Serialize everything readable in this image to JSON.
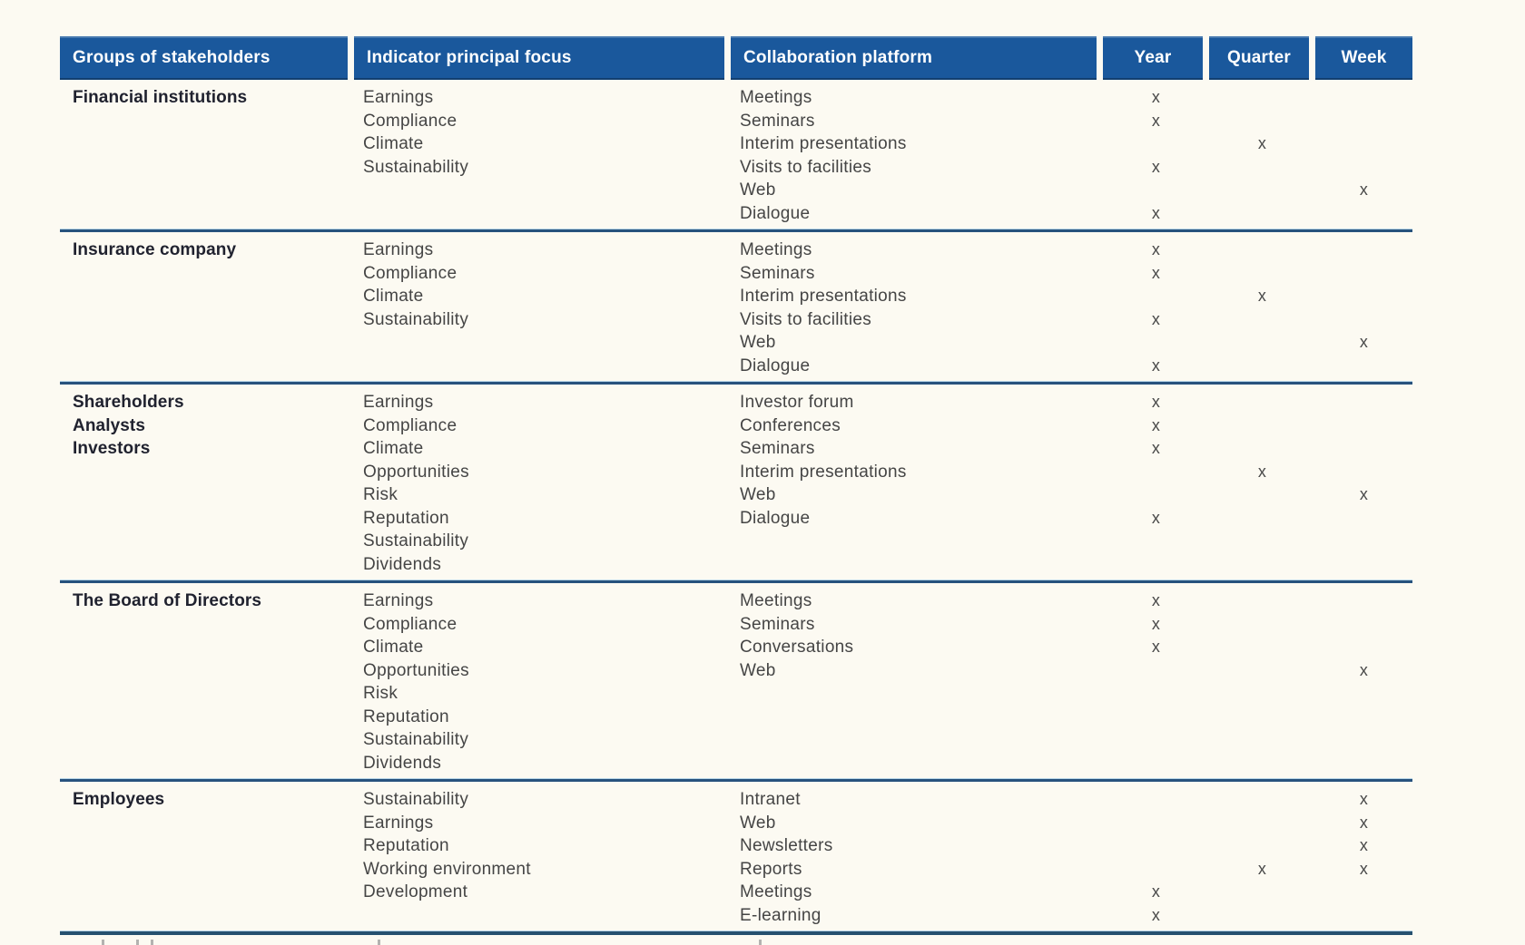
{
  "colors": {
    "header_bg": "#1a589c",
    "header_text": "#ffffff",
    "separator_line": "#27527d",
    "separator_highlight": "#b9d6e8",
    "body_text": "#454545",
    "group_text": "#20222f",
    "page_bg": "#fcfaf2"
  },
  "table": {
    "headers": [
      "Groups of stakeholders",
      "Indicator principal focus",
      "Collaboration platform",
      "Year",
      "Quarter",
      "Week"
    ],
    "mark": "x",
    "groups": [
      {
        "stakeholders": [
          "Financial institutions"
        ],
        "focus": [
          "Earnings",
          "Compliance",
          "Climate",
          "Sustainability"
        ],
        "platforms": [
          {
            "name": "Meetings",
            "year": "x",
            "quarter": "",
            "week": ""
          },
          {
            "name": "Seminars",
            "year": "x",
            "quarter": "",
            "week": ""
          },
          {
            "name": "Interim presentations",
            "year": "",
            "quarter": "x",
            "week": ""
          },
          {
            "name": "Visits to facilities",
            "year": "x",
            "quarter": "",
            "week": ""
          },
          {
            "name": "Web",
            "year": "",
            "quarter": "",
            "week": "x"
          },
          {
            "name": "Dialogue",
            "year": "x",
            "quarter": "",
            "week": ""
          }
        ]
      },
      {
        "stakeholders": [
          "Insurance company"
        ],
        "focus": [
          "Earnings",
          "Compliance",
          "Climate",
          "Sustainability"
        ],
        "platforms": [
          {
            "name": "Meetings",
            "year": "x",
            "quarter": "",
            "week": ""
          },
          {
            "name": "Seminars",
            "year": "x",
            "quarter": "",
            "week": ""
          },
          {
            "name": "Interim presentations",
            "year": "",
            "quarter": "x",
            "week": ""
          },
          {
            "name": "Visits to facilities",
            "year": "x",
            "quarter": "",
            "week": ""
          },
          {
            "name": "Web",
            "year": "",
            "quarter": "",
            "week": "x"
          },
          {
            "name": "Dialogue",
            "year": "x",
            "quarter": "",
            "week": ""
          }
        ]
      },
      {
        "stakeholders": [
          "Shareholders",
          "Analysts",
          "Investors"
        ],
        "focus": [
          "Earnings",
          "Compliance",
          "Climate",
          "Opportunities",
          "Risk",
          "Reputation",
          "Sustainability",
          "Dividends"
        ],
        "platforms": [
          {
            "name": "Investor forum",
            "year": "x",
            "quarter": "",
            "week": ""
          },
          {
            "name": "Conferences",
            "year": "x",
            "quarter": "",
            "week": ""
          },
          {
            "name": "Seminars",
            "year": "x",
            "quarter": "",
            "week": ""
          },
          {
            "name": "Interim presentations",
            "year": "",
            "quarter": "x",
            "week": ""
          },
          {
            "name": "Web",
            "year": "",
            "quarter": "",
            "week": "x"
          },
          {
            "name": "Dialogue",
            "year": "x",
            "quarter": "",
            "week": ""
          }
        ]
      },
      {
        "stakeholders": [
          "The Board of Directors"
        ],
        "focus": [
          "Earnings",
          "Compliance",
          "Climate",
          "Opportunities",
          "Risk",
          "Reputation",
          "Sustainability",
          "Dividends"
        ],
        "platforms": [
          {
            "name": "Meetings",
            "year": "x",
            "quarter": "",
            "week": ""
          },
          {
            "name": "Seminars",
            "year": "x",
            "quarter": "",
            "week": ""
          },
          {
            "name": "Conversations",
            "year": "x",
            "quarter": "",
            "week": ""
          },
          {
            "name": "Web",
            "year": "",
            "quarter": "",
            "week": "x"
          }
        ]
      },
      {
        "stakeholders": [
          "Employees"
        ],
        "focus": [
          "Sustainability",
          "Earnings",
          "Reputation",
          "Working environment",
          "Development"
        ],
        "platforms": [
          {
            "name": "Intranet",
            "year": "",
            "quarter": "",
            "week": "x"
          },
          {
            "name": "Web",
            "year": "",
            "quarter": "",
            "week": "x"
          },
          {
            "name": "Newsletters",
            "year": "",
            "quarter": "",
            "week": "x"
          },
          {
            "name": "Reports",
            "year": "",
            "quarter": "x",
            "week": "x"
          },
          {
            "name": "Meetings",
            "year": "x",
            "quarter": "",
            "week": ""
          },
          {
            "name": "E-learning",
            "year": "x",
            "quarter": "",
            "week": ""
          }
        ]
      }
    ]
  }
}
